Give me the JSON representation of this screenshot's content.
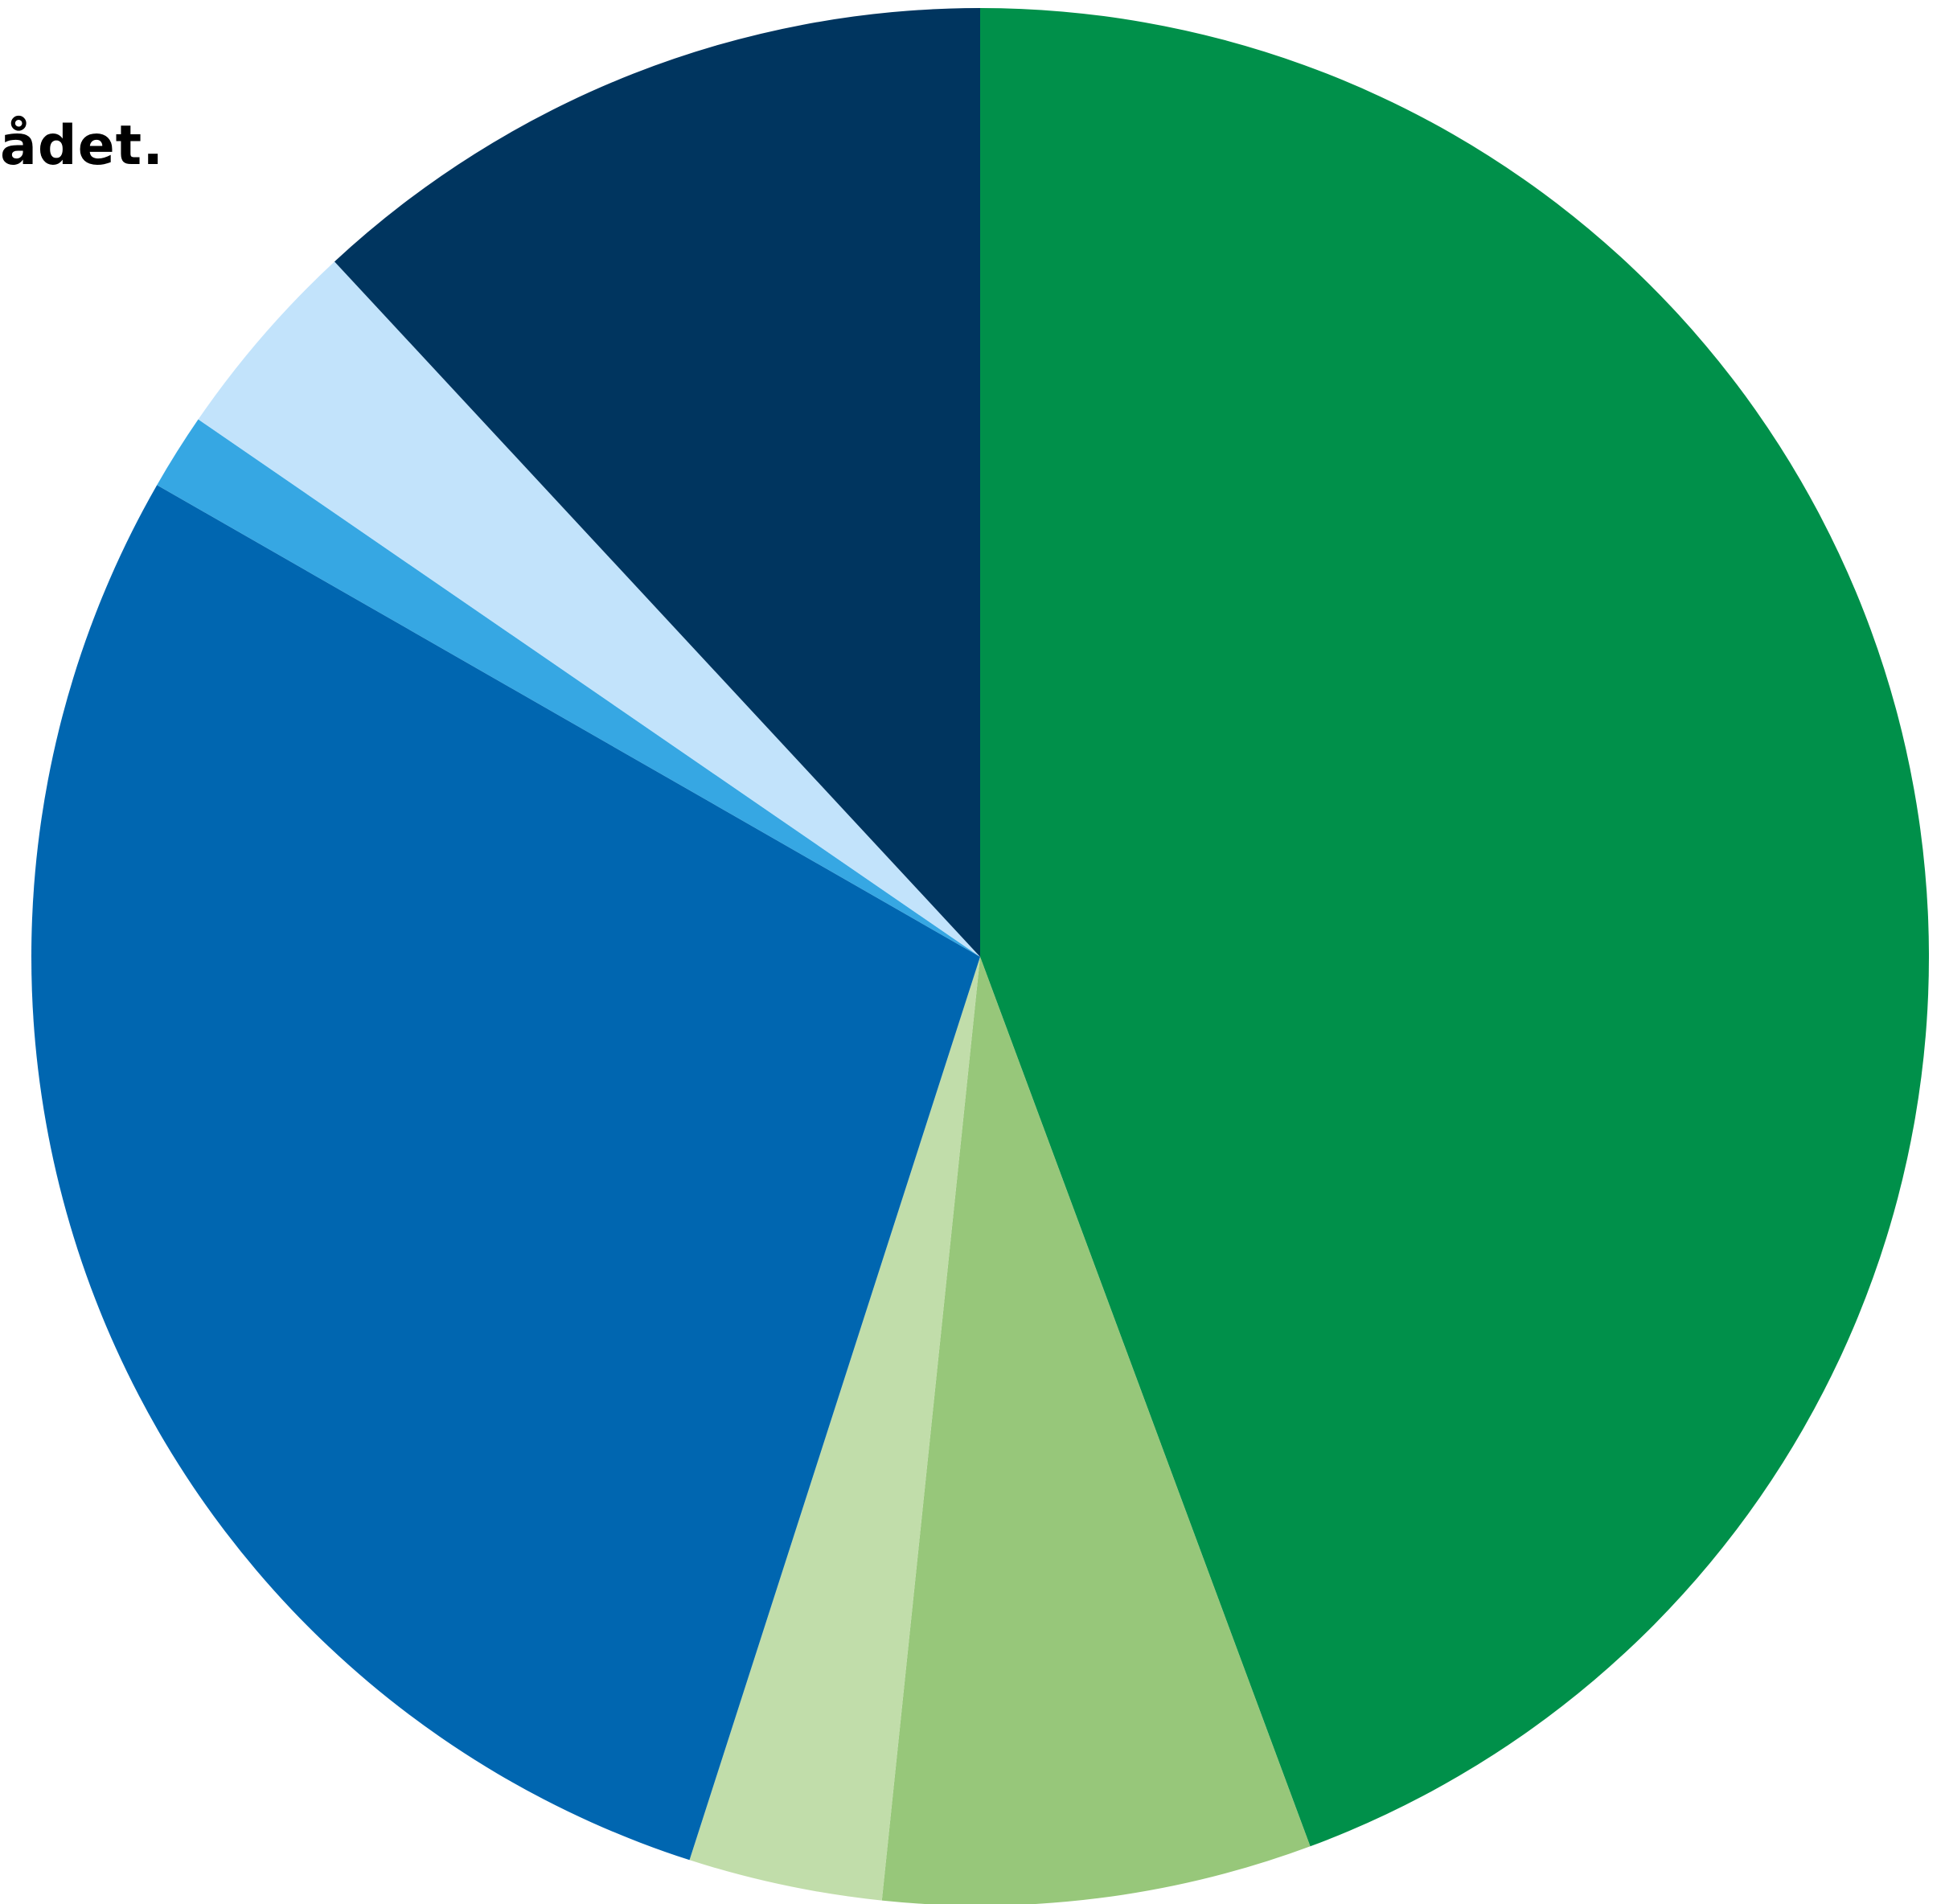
{
  "chart_data": {
    "type": "pie",
    "title": "ådet.",
    "start_angle_deg": 0,
    "direction": "clockwise",
    "slices": [
      {
        "value": 44.3,
        "color": "#00904A"
      },
      {
        "value": 7.3,
        "color": "#97C77A"
      },
      {
        "value": 3.3,
        "color": "#C1DDAA"
      },
      {
        "value": 28.3,
        "color": "#0066B0"
      },
      {
        "value": 1.3,
        "color": "#36A7E3"
      },
      {
        "value": 3.5,
        "color": "#C2E3FB"
      },
      {
        "value": 11.9,
        "color": "#00355F"
      }
    ]
  }
}
